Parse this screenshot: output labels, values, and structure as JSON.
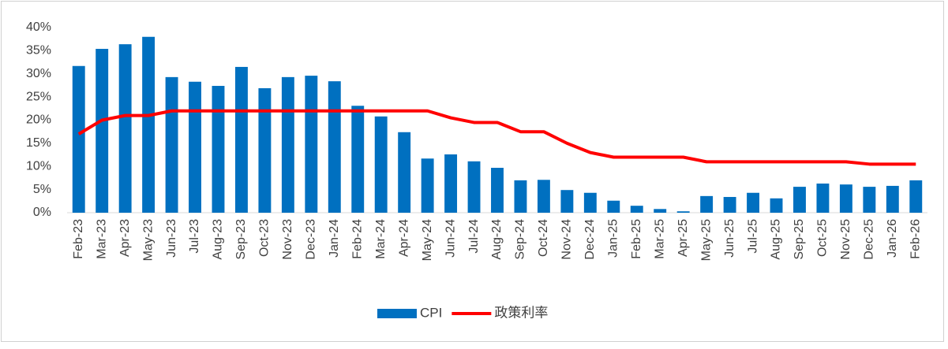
{
  "chart_data": {
    "type": "bar-line",
    "categories": [
      "Feb-23",
      "Mar-23",
      "Apr-23",
      "May-23",
      "Jun-23",
      "Jul-23",
      "Aug-23",
      "Sep-23",
      "Oct-23",
      "Nov-23",
      "Dec-23",
      "Jan-24",
      "Feb-24",
      "Mar-24",
      "Apr-24",
      "May-24",
      "Jun-24",
      "Jul-24",
      "Aug-24",
      "Sep-24",
      "Oct-24",
      "Nov-24",
      "Dec-24",
      "Jan-25",
      "Feb-25",
      "Mar-25",
      "Apr-25",
      "May-25",
      "Jun-25",
      "Jul-25",
      "Aug-25",
      "Sep-25",
      "Oct-25",
      "Nov-25",
      "Dec-25",
      "Jan-26",
      "Feb-26"
    ],
    "series": [
      {
        "name": "CPI",
        "type": "bar",
        "color": "#0070c0",
        "values": [
          31.7,
          35.4,
          36.4,
          38.0,
          29.3,
          28.3,
          27.4,
          31.5,
          26.9,
          29.3,
          29.6,
          28.4,
          23.1,
          20.8,
          17.4,
          11.7,
          12.6,
          11.1,
          9.7,
          7.0,
          7.1,
          4.9,
          4.3,
          2.6,
          1.5,
          0.8,
          0.3,
          3.6,
          3.4,
          4.3,
          3.1,
          5.6,
          6.3,
          6.1,
          5.6,
          5.8,
          7.0
        ]
      },
      {
        "name": "政策利率",
        "type": "line",
        "color": "#ff0000",
        "values": [
          17,
          20,
          21,
          21,
          22,
          22,
          22,
          22,
          22,
          22,
          22,
          22,
          22,
          22,
          22,
          22,
          20.5,
          19.5,
          19.5,
          17.5,
          17.5,
          15,
          13,
          12,
          12,
          12,
          12,
          11,
          11,
          11,
          11,
          11,
          11,
          11,
          10.5,
          10.5,
          10.5
        ]
      }
    ],
    "ylim": [
      0,
      40
    ],
    "yticks": [
      {
        "value": 0,
        "label": "0%"
      },
      {
        "value": 5,
        "label": "5%"
      },
      {
        "value": 10,
        "label": "10%"
      },
      {
        "value": 15,
        "label": "15%"
      },
      {
        "value": 20,
        "label": "20%"
      },
      {
        "value": 25,
        "label": "25%"
      },
      {
        "value": 30,
        "label": "30%"
      },
      {
        "value": 35,
        "label": "35%"
      },
      {
        "value": 40,
        "label": "40%"
      }
    ],
    "grid": false,
    "legend": "bottom"
  }
}
